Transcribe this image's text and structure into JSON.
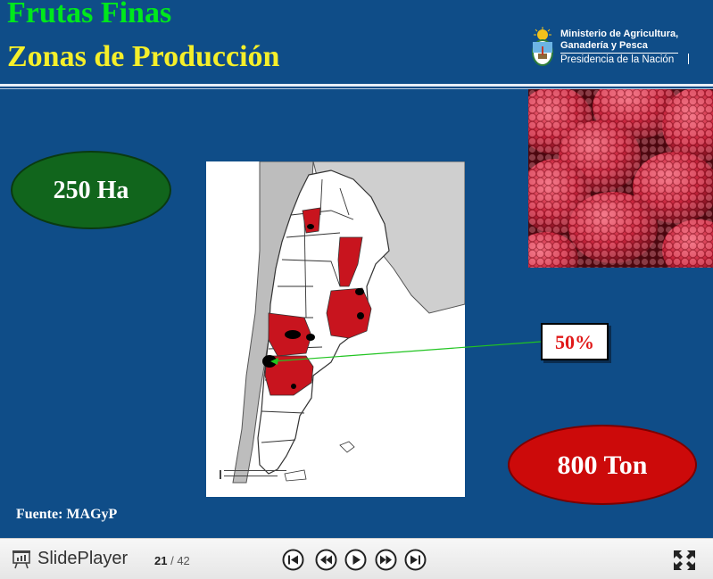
{
  "slide": {
    "title_line1": "Frutas Finas",
    "title_line2": "Zonas de Producción",
    "logo": {
      "line1": "Ministerio de Agricultura,",
      "line2": "Ganadería y Pesca",
      "line3": "Presidencia de la Nación"
    },
    "area_label": "250 Ha",
    "production_label": "800 Ton",
    "share_label": "50%",
    "source": "Fuente: MAGyP",
    "colors": {
      "background": "#0f4d88",
      "title1": "#00e81c",
      "title2": "#f5ef2a",
      "area_oval": "#11651c",
      "production_oval": "#cc0a0a",
      "region_fill": "#c8141e"
    }
  },
  "player": {
    "brand_a": "Slide",
    "brand_b": "Player",
    "current_page": "21",
    "total_pages": "/ 42",
    "controls": [
      "first-icon",
      "prev-icon",
      "play-icon",
      "next-icon",
      "last-icon"
    ],
    "fullscreen_icon": "fullscreen-icon"
  }
}
